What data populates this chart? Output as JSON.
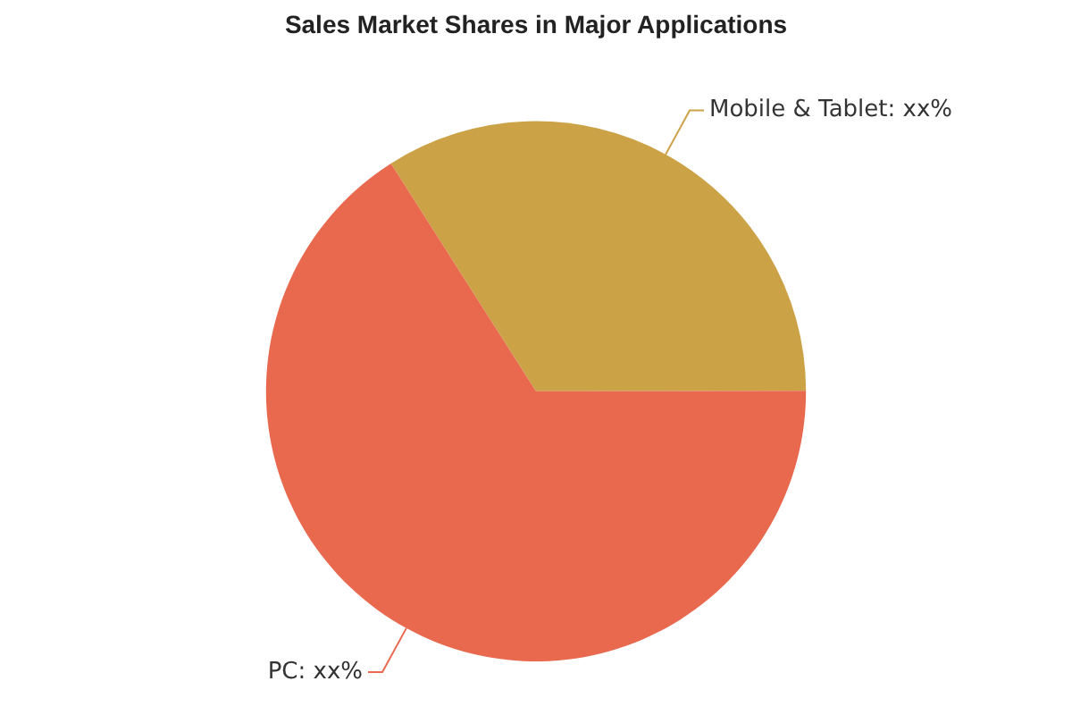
{
  "chart_data": {
    "type": "pie",
    "title": "Sales Market Shares in Major Applications",
    "categories": [
      "Mobile & Tablet",
      "PC"
    ],
    "values": [
      34,
      66
    ],
    "colors": [
      "#cca246",
      "#e8694e"
    ],
    "value_labels": [
      "xx%",
      "xx%"
    ],
    "legend": false
  }
}
